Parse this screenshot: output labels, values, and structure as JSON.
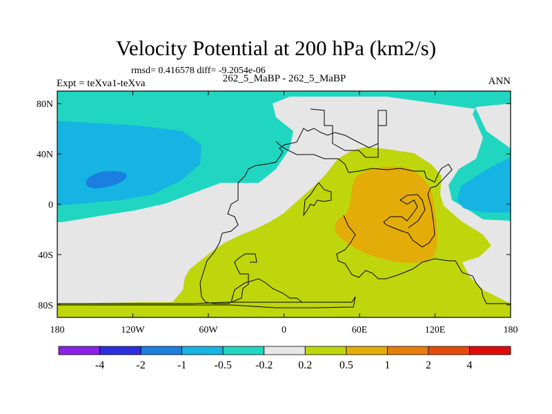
{
  "chart_data": {
    "type": "contour-map",
    "title": "Velocity Potential at 200 hPa (km2/s)",
    "stats_label": "rmsd= 0.416578  diff= -9.2054e-06",
    "experiment_label": "Expt = teXva1-teXva",
    "case_label": "262_5_MaBP - 262_5_MaBP",
    "season_label": "ANN",
    "x_ticks": [
      {
        "lon": -180,
        "label": "180"
      },
      {
        "lon": -120,
        "label": "120W"
      },
      {
        "lon": -60,
        "label": "60W"
      },
      {
        "lon": 0,
        "label": "0"
      },
      {
        "lon": 60,
        "label": "60E"
      },
      {
        "lon": 120,
        "label": "120E"
      },
      {
        "lon": 180,
        "label": "180"
      }
    ],
    "y_ticks": [
      {
        "lat": 80,
        "label": "80N"
      },
      {
        "lat": 40,
        "label": "40N"
      },
      {
        "lat": 0,
        "label": "0"
      },
      {
        "lat": -40,
        "label": "40S"
      },
      {
        "lat": -80,
        "label": "80S"
      }
    ],
    "xlim": [
      -180,
      180
    ],
    "ylim": [
      -90,
      90
    ],
    "color_levels": [
      "-4",
      "-2",
      "-1",
      "-0.5",
      "-0.2",
      "0.2",
      "0.5",
      "1",
      "2",
      "4"
    ],
    "color_bins": [
      "#8a22e6",
      "#2d2de0",
      "#1a7fe0",
      "#16b4e3",
      "#20d6c1",
      "#e6e6e6",
      "#bed60b",
      "#e3ac08",
      "#e67d0a",
      "#e64a0a",
      "#e00c0c"
    ],
    "colors": {
      "field_background": "#e6e6e6",
      "cyan_region": "#20d6c1",
      "light_blue_region": "#16b4e3",
      "blue_core": "#1a7fe0",
      "yellow_green_region": "#bed60b",
      "orange_region": "#e3ac08",
      "coastline": "#000000"
    }
  }
}
